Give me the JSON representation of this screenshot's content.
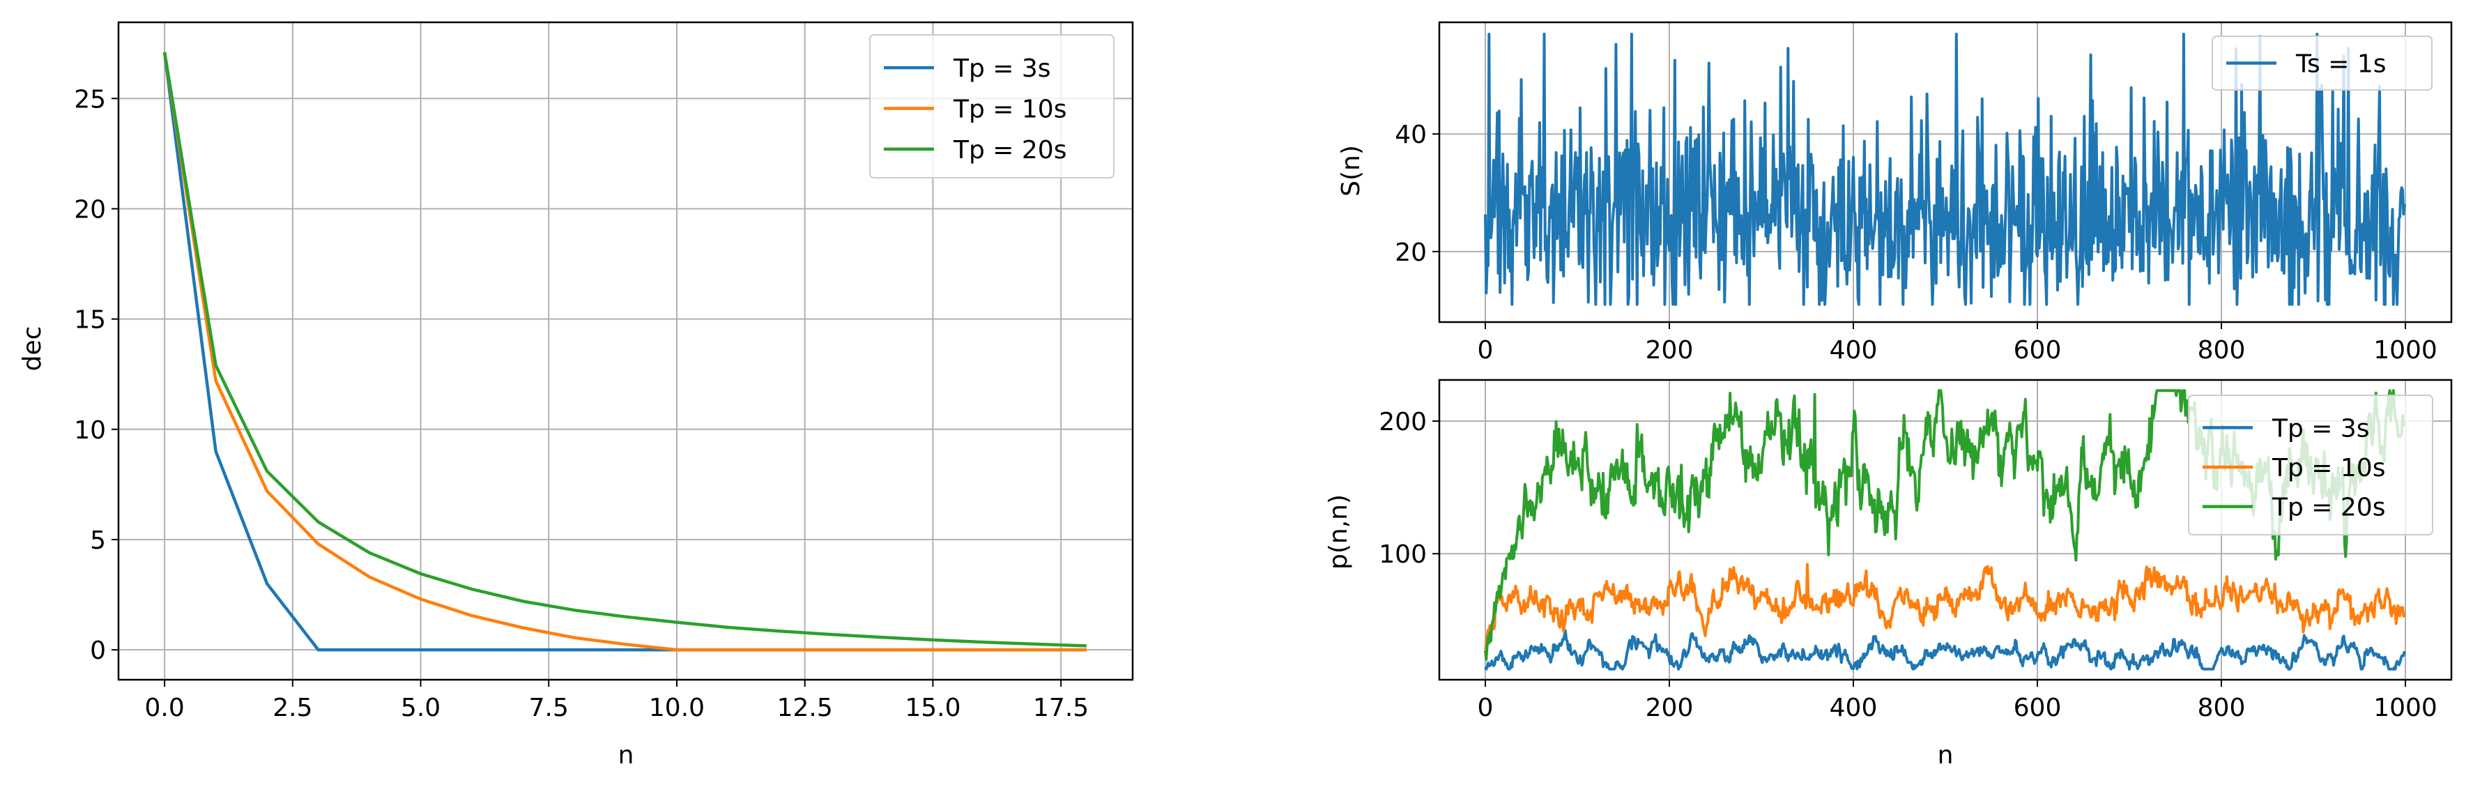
{
  "chart_data": [
    {
      "type": "line",
      "xlabel": "n",
      "ylabel": "dec",
      "xlim": [
        -0.9,
        18.9
      ],
      "ylim": [
        -1.355,
        28.455
      ],
      "xticks": [
        0.0,
        2.5,
        5.0,
        7.5,
        10.0,
        12.5,
        15.0,
        17.5
      ],
      "xtick_labels": [
        "0.0",
        "2.5",
        "5.0",
        "7.5",
        "10.0",
        "12.5",
        "15.0",
        "17.5"
      ],
      "yticks": [
        0,
        5,
        10,
        15,
        20,
        25
      ],
      "ytick_labels": [
        "0",
        "5",
        "10",
        "15",
        "20",
        "25"
      ],
      "grid": true,
      "legend_position": "top-right",
      "series": [
        {
          "name": "Tp = 3s",
          "color": "#1f77b4",
          "x": [
            0,
            1,
            2,
            3,
            4,
            5,
            6,
            7,
            8,
            9,
            10,
            11,
            12,
            13,
            14,
            15,
            16,
            17,
            18
          ],
          "y": [
            27.1,
            9.0,
            3.0,
            0.0,
            0,
            0,
            0,
            0,
            0,
            0,
            0,
            0,
            0,
            0,
            0,
            0,
            0,
            0,
            0
          ]
        },
        {
          "name": "Tp = 10s",
          "color": "#ff7f0e",
          "x": [
            0,
            1,
            2,
            3,
            4,
            5,
            6,
            7,
            8,
            9,
            10,
            11,
            12,
            13,
            14,
            15,
            16,
            17,
            18
          ],
          "y": [
            27.1,
            12.2,
            7.2,
            4.8,
            3.3,
            2.3,
            1.55,
            1.0,
            0.55,
            0.25,
            0.0,
            0,
            0,
            0,
            0,
            0,
            0,
            0,
            0
          ]
        },
        {
          "name": "Tp = 20s",
          "color": "#2ca02c",
          "x": [
            0,
            1,
            2,
            3,
            4,
            5,
            6,
            7,
            8,
            9,
            10,
            11,
            12,
            13,
            14,
            15,
            16,
            17,
            18
          ],
          "y": [
            27.1,
            12.9,
            8.1,
            5.8,
            4.4,
            3.45,
            2.75,
            2.2,
            1.8,
            1.5,
            1.25,
            1.02,
            0.85,
            0.7,
            0.57,
            0.45,
            0.35,
            0.26,
            0.18
          ]
        }
      ]
    },
    {
      "type": "line",
      "xlabel": "",
      "ylabel": "S(n)",
      "xlim": [
        -50,
        1050
      ],
      "ylim": [
        8,
        59
      ],
      "xticks": [
        0,
        200,
        400,
        600,
        800,
        1000
      ],
      "xtick_labels": [
        "0",
        "200",
        "400",
        "600",
        "800",
        "1000"
      ],
      "yticks": [
        20,
        40
      ],
      "ytick_labels": [
        "20",
        "40"
      ],
      "grid": true,
      "legend_position": "top-right",
      "series": [
        {
          "name": "Ts = 1s",
          "color": "#1f77b4",
          "points": 1000,
          "mean": 25,
          "min": 11,
          "max": 57,
          "peak_index": 4,
          "peak_value": 57
        }
      ]
    },
    {
      "type": "line",
      "xlabel": "n",
      "ylabel": "p(n,n)",
      "xlim": [
        -50,
        1050
      ],
      "ylim": [
        5,
        231
      ],
      "xticks": [
        0,
        200,
        400,
        600,
        800,
        1000
      ],
      "xtick_labels": [
        "0",
        "200",
        "400",
        "600",
        "800",
        "1000"
      ],
      "yticks": [
        100,
        200
      ],
      "ytick_labels": [
        "100",
        "200"
      ],
      "grid": true,
      "legend_position": "top-right",
      "series": [
        {
          "name": "Tp = 3s",
          "color": "#1f77b4",
          "points": 1000,
          "start": 15,
          "level": 25
        },
        {
          "name": "Tp = 10s",
          "color": "#ff7f0e",
          "points": 1000,
          "start": 30,
          "level": 65
        },
        {
          "name": "Tp = 20s",
          "color": "#2ca02c",
          "points": 1000,
          "start": 20,
          "level": 170
        }
      ]
    }
  ]
}
